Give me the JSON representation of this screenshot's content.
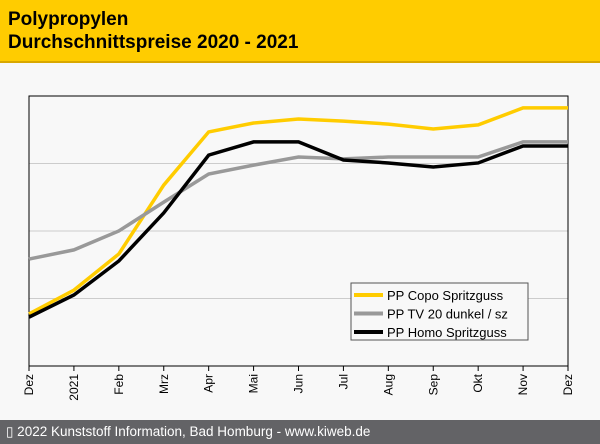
{
  "header": {
    "title_line1": "Polypropylen",
    "title_line2": "Durchschnittspreise 2020 - 2021"
  },
  "footer": {
    "text": "▯ 2022 Kunststoff Information, Bad Homburg - www.kiweb.de"
  },
  "chart_data": {
    "type": "line",
    "title": "Polypropylen Durchschnittspreise 2020 - 2021",
    "xlabel": "",
    "ylabel": "",
    "categories": [
      "Dez",
      "2021",
      "Feb",
      "Mrz",
      "Apr",
      "Mai",
      "Jun",
      "Jul",
      "Aug",
      "Sep",
      "Okt",
      "Nov",
      "Dez"
    ],
    "ylim": [
      0,
      100
    ],
    "y_note": "relative index; no y-axis labels shown",
    "grid": true,
    "legend": "bottom-right",
    "series": [
      {
        "name": "PP Copo Spritzguss",
        "color": "#ffcc00",
        "values": [
          19.3,
          28.1,
          41.5,
          67,
          86.7,
          90,
          91.5,
          90.7,
          89.6,
          87.8,
          89.3,
          95.6,
          95.6
        ]
      },
      {
        "name": "PP TV 20 dunkel / sz",
        "color": "#999999",
        "values": [
          39.6,
          43,
          50,
          60.7,
          71.1,
          74.4,
          77.4,
          76.7,
          77.4,
          77.4,
          77.4,
          83,
          83
        ]
      },
      {
        "name": "PP Homo Spritzguss",
        "color": "#000000",
        "values": [
          18.1,
          26.3,
          38.9,
          56.7,
          78.1,
          83,
          83,
          76.3,
          75.2,
          73.7,
          75.2,
          81.5,
          81.5
        ]
      }
    ]
  }
}
